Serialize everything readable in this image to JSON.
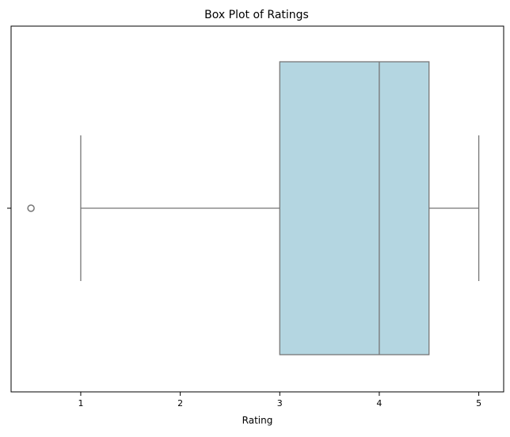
{
  "chart_data": {
    "type": "box",
    "title": "Box Plot of Ratings",
    "xlabel": "Rating",
    "ylabel": "",
    "xlim": [
      0.3,
      5.25
    ],
    "xticks": [
      1,
      2,
      3,
      4,
      5
    ],
    "xtick_labels": [
      "1",
      "2",
      "3",
      "4",
      "5"
    ],
    "orientation": "horizontal",
    "grid": false,
    "box": {
      "whisker_low": 1.0,
      "q1": 3.0,
      "median": 4.0,
      "q3": 4.5,
      "whisker_high": 5.0,
      "outliers": [
        0.5
      ]
    },
    "colors": {
      "box_fill": "#b4d6e1",
      "line": "#767676",
      "axes": "#000000"
    }
  }
}
